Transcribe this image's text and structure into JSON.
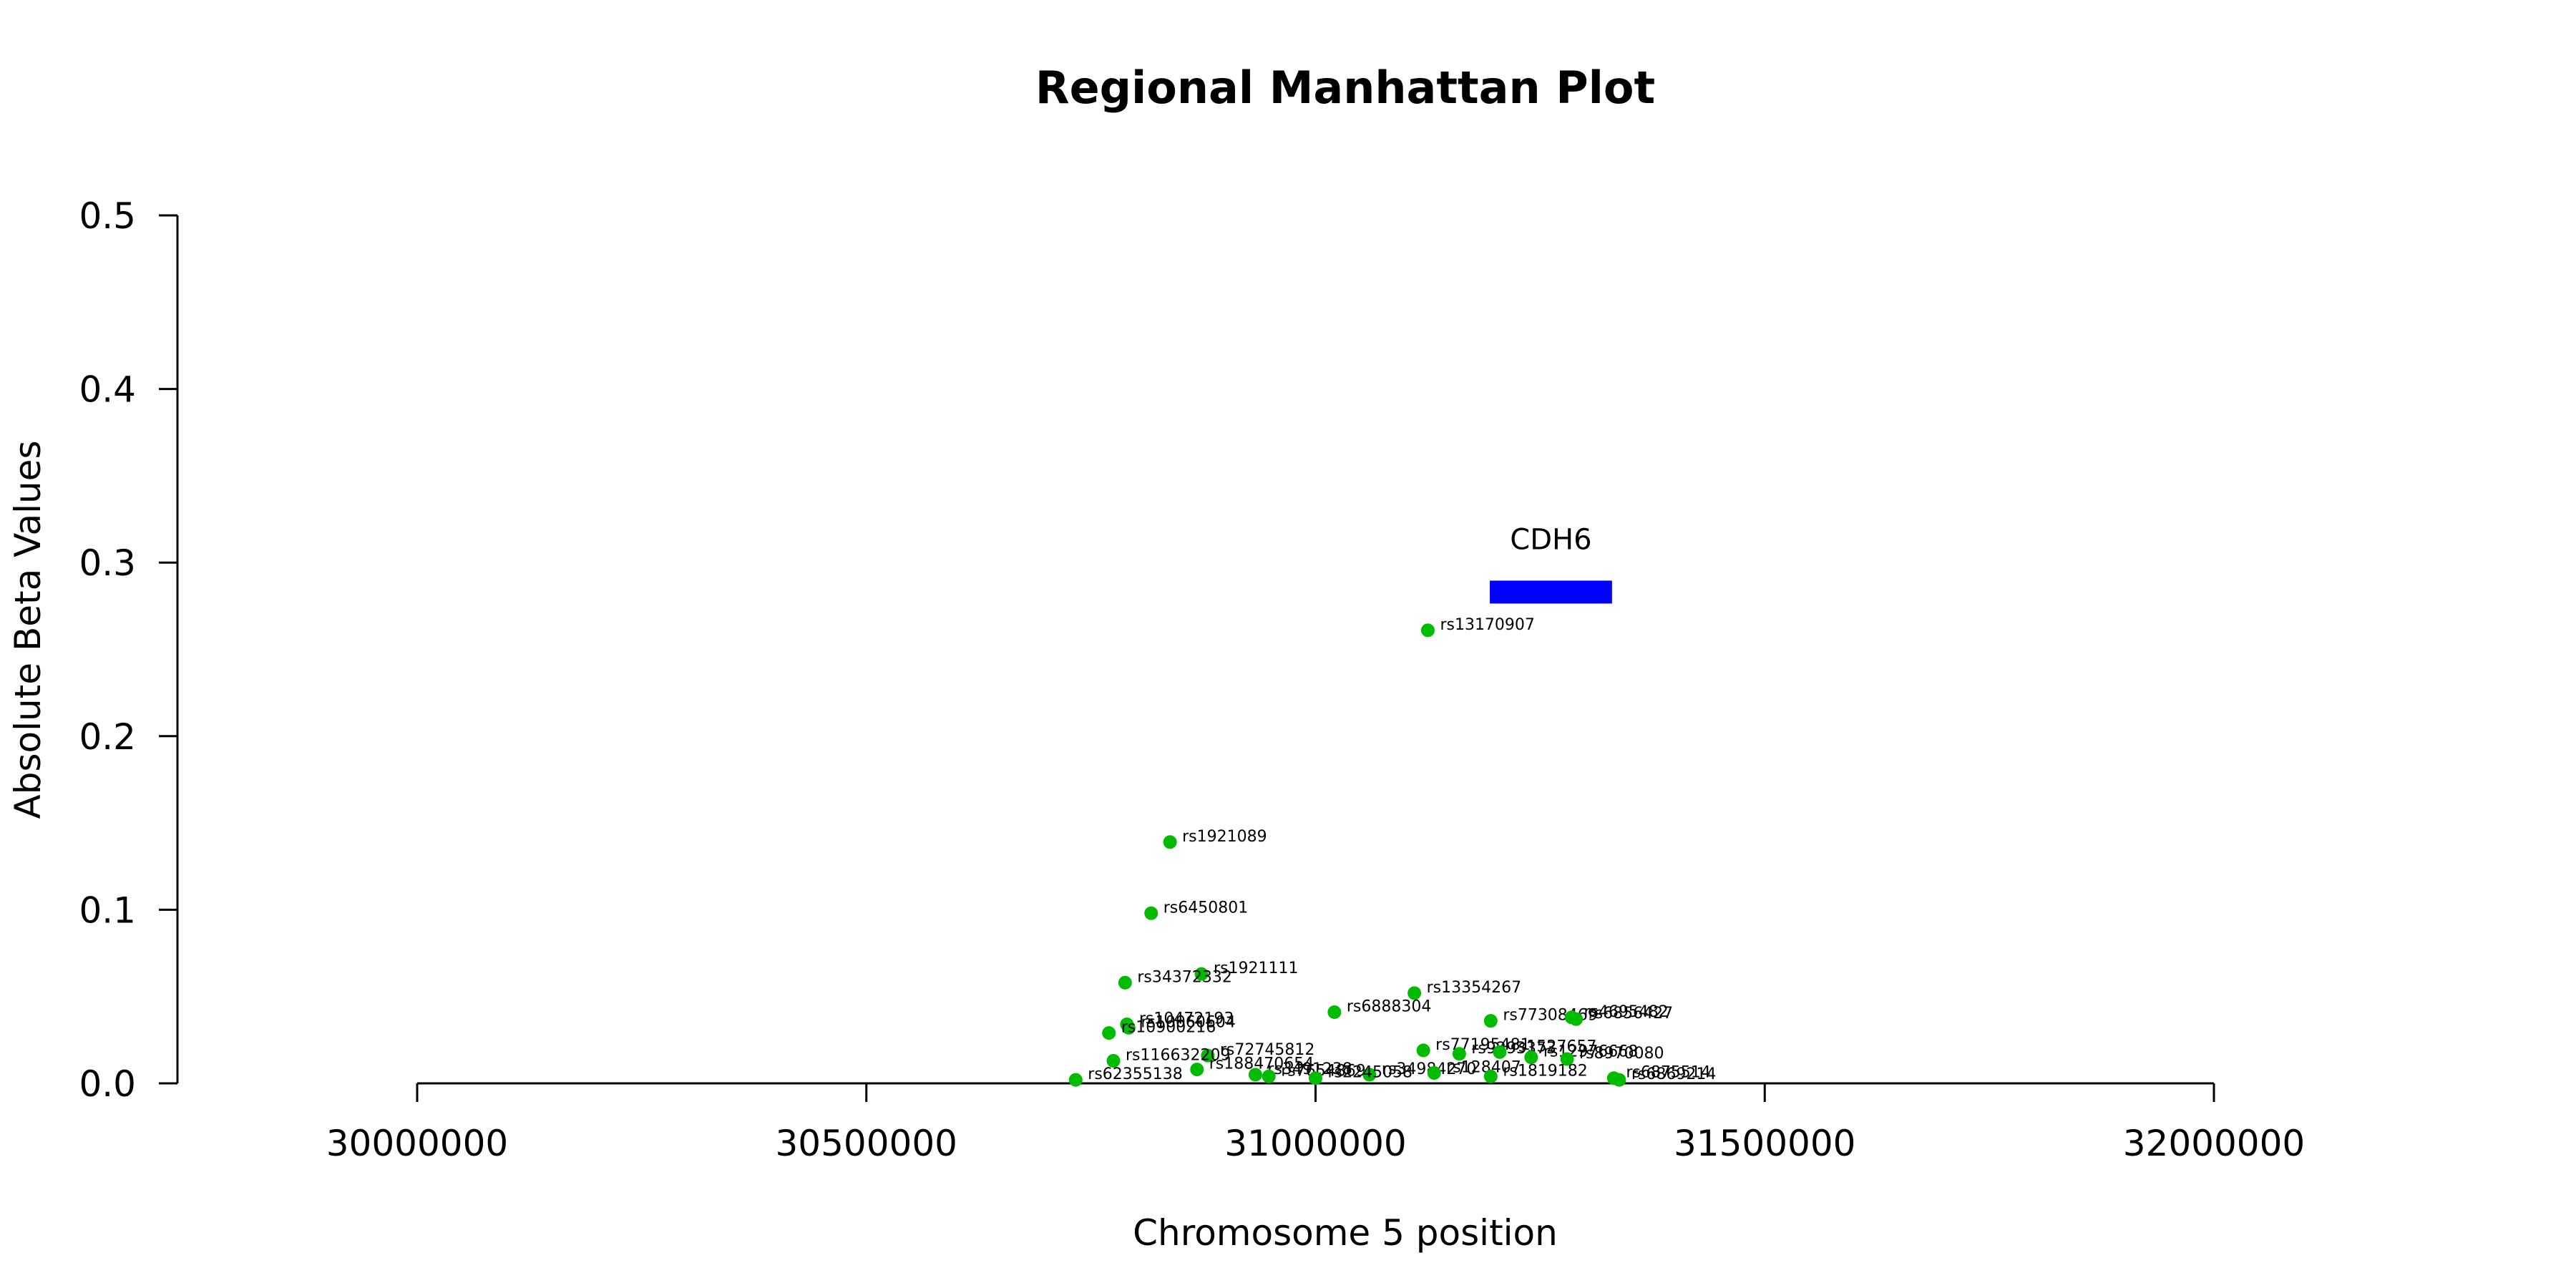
{
  "chart_data": {
    "type": "scatter",
    "title": "Regional Manhattan Plot",
    "xlabel": "Chromosome 5 position",
    "ylabel": "Absolute Beta Values",
    "xlim": [
      30000000,
      32000000
    ],
    "ylim": [
      0,
      0.5
    ],
    "x_ticks": [
      30000000,
      30500000,
      31000000,
      31500000,
      32000000
    ],
    "x_tick_labels": [
      "30000000",
      "30500000",
      "31000000",
      "31500000",
      "32000000"
    ],
    "y_ticks": [
      0,
      0.1,
      0.2,
      0.3,
      0.4,
      0.5
    ],
    "y_tick_labels": [
      "0.0",
      "0.1",
      "0.2",
      "0.3",
      "0.4",
      "0.5"
    ],
    "grid": false,
    "point_color": "#00bb00",
    "gene_color": "#0000ff",
    "genes": [
      {
        "name": "CDH6",
        "start": 31194000,
        "end": 31330000,
        "y": 0.283
      }
    ],
    "points": [
      {
        "label": "rs13170907",
        "x": 31125000,
        "y": 0.261
      },
      {
        "label": "rs1921089",
        "x": 30838000,
        "y": 0.139
      },
      {
        "label": "rs6450801",
        "x": 30817000,
        "y": 0.098
      },
      {
        "label": "rs1921111",
        "x": 30873000,
        "y": 0.063
      },
      {
        "label": "rs34372332",
        "x": 30788000,
        "y": 0.058
      },
      {
        "label": "rs13354267",
        "x": 31110000,
        "y": 0.052
      },
      {
        "label": "rs6888304",
        "x": 31021000,
        "y": 0.041
      },
      {
        "label": "rs77308469",
        "x": 31195000,
        "y": 0.036
      },
      {
        "label": "rs4695482",
        "x": 31285000,
        "y": 0.038
      },
      {
        "label": "rs6856427",
        "x": 31290000,
        "y": 0.037
      },
      {
        "label": "rs10472193",
        "x": 30790000,
        "y": 0.034
      },
      {
        "label": "rs10060604",
        "x": 30792000,
        "y": 0.032
      },
      {
        "label": "rs10900216",
        "x": 30770000,
        "y": 0.029
      },
      {
        "label": "rs77195481",
        "x": 31120000,
        "y": 0.019
      },
      {
        "label": "rs9293373",
        "x": 31160000,
        "y": 0.017
      },
      {
        "label": "rs1527657",
        "x": 31205000,
        "y": 0.018
      },
      {
        "label": "rs12976668",
        "x": 31240000,
        "y": 0.015
      },
      {
        "label": "rs8970080",
        "x": 31280000,
        "y": 0.014
      },
      {
        "label": "rs72745812",
        "x": 30880000,
        "y": 0.016
      },
      {
        "label": "rs116632209",
        "x": 30775000,
        "y": 0.013
      },
      {
        "label": "rs188470654",
        "x": 30868000,
        "y": 0.008
      },
      {
        "label": "rs3491238",
        "x": 30933000,
        "y": 0.005
      },
      {
        "label": "rs7654869",
        "x": 30948000,
        "y": 0.004
      },
      {
        "label": "rs34984270",
        "x": 31060000,
        "y": 0.005
      },
      {
        "label": "rs128407",
        "x": 31132000,
        "y": 0.006
      },
      {
        "label": "rs1819182",
        "x": 31195000,
        "y": 0.004
      },
      {
        "label": "rs2245058",
        "x": 31000000,
        "y": 0.003
      },
      {
        "label": "rs6875514",
        "x": 31332000,
        "y": 0.003
      },
      {
        "label": "rs6869214",
        "x": 31338000,
        "y": 0.002
      },
      {
        "label": "rs62355138",
        "x": 30733000,
        "y": 0.002
      }
    ]
  }
}
